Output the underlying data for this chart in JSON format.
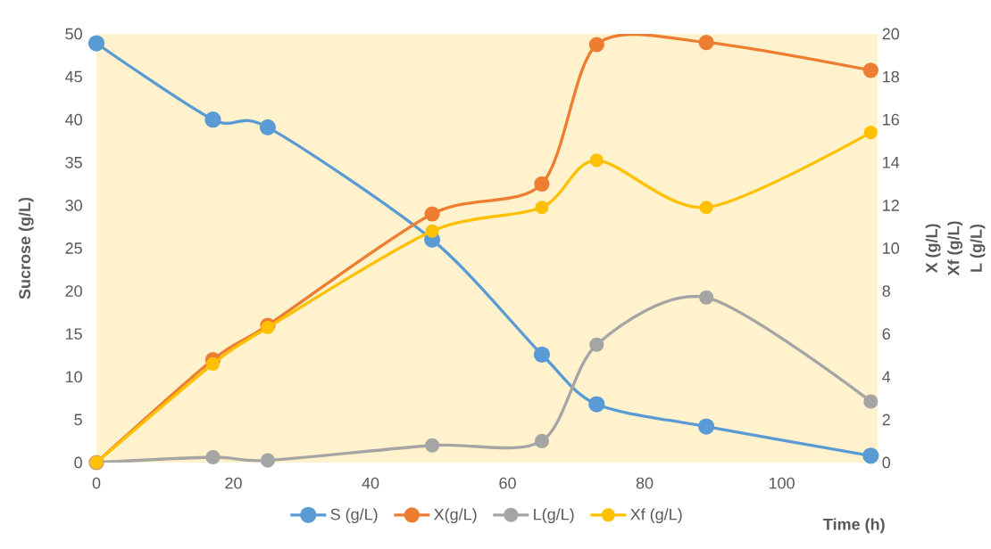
{
  "chart_data": {
    "type": "line",
    "xlabel": "Time (h)",
    "ylabel": "Sucrose (g/L)",
    "y2label": "X (g/L)",
    "annotations": [
      "Xf (g/L)",
      "L (g/L)"
    ],
    "x": [
      0,
      17,
      25,
      49,
      65,
      73,
      89,
      113
    ],
    "series": [
      {
        "name": "S (g/L)",
        "color": "#5b9bd5",
        "values": [
          48.9,
          40,
          39.1,
          26,
          12.6,
          6.8,
          4.2,
          0.8
        ]
      },
      {
        "name": "X(g/L)",
        "color": "#ed7d31",
        "axis": "y2",
        "values": [
          0,
          4.8,
          6.4,
          11.6,
          13,
          19.5,
          19.6,
          18.3
        ]
      },
      {
        "name": "L(g/L)",
        "color": "#a5a5a5",
        "axis": "y2",
        "values": [
          0,
          0.25,
          0.1,
          0.8,
          1.0,
          5.5,
          7.7,
          2.85
        ]
      },
      {
        "name": "Xf (g/L)",
        "color": "#ffc000",
        "axis": "y2",
        "values": [
          0,
          4.6,
          6.3,
          10.8,
          11.9,
          14.1,
          11.9,
          15.4
        ]
      }
    ],
    "xlim": [
      0,
      114
    ],
    "xticks": [
      0,
      20,
      40,
      60,
      80,
      100
    ],
    "ylim": [
      0,
      50
    ],
    "yticks": [
      0,
      5,
      10,
      15,
      20,
      25,
      30,
      35,
      40,
      45,
      50
    ],
    "y2lim": [
      0,
      20
    ],
    "y2ticks": [
      0,
      2,
      4,
      6,
      8,
      10,
      12,
      14,
      16,
      18,
      20
    ],
    "marker": "circle",
    "line_style": "solid",
    "legend": "bottom",
    "grid": false
  }
}
